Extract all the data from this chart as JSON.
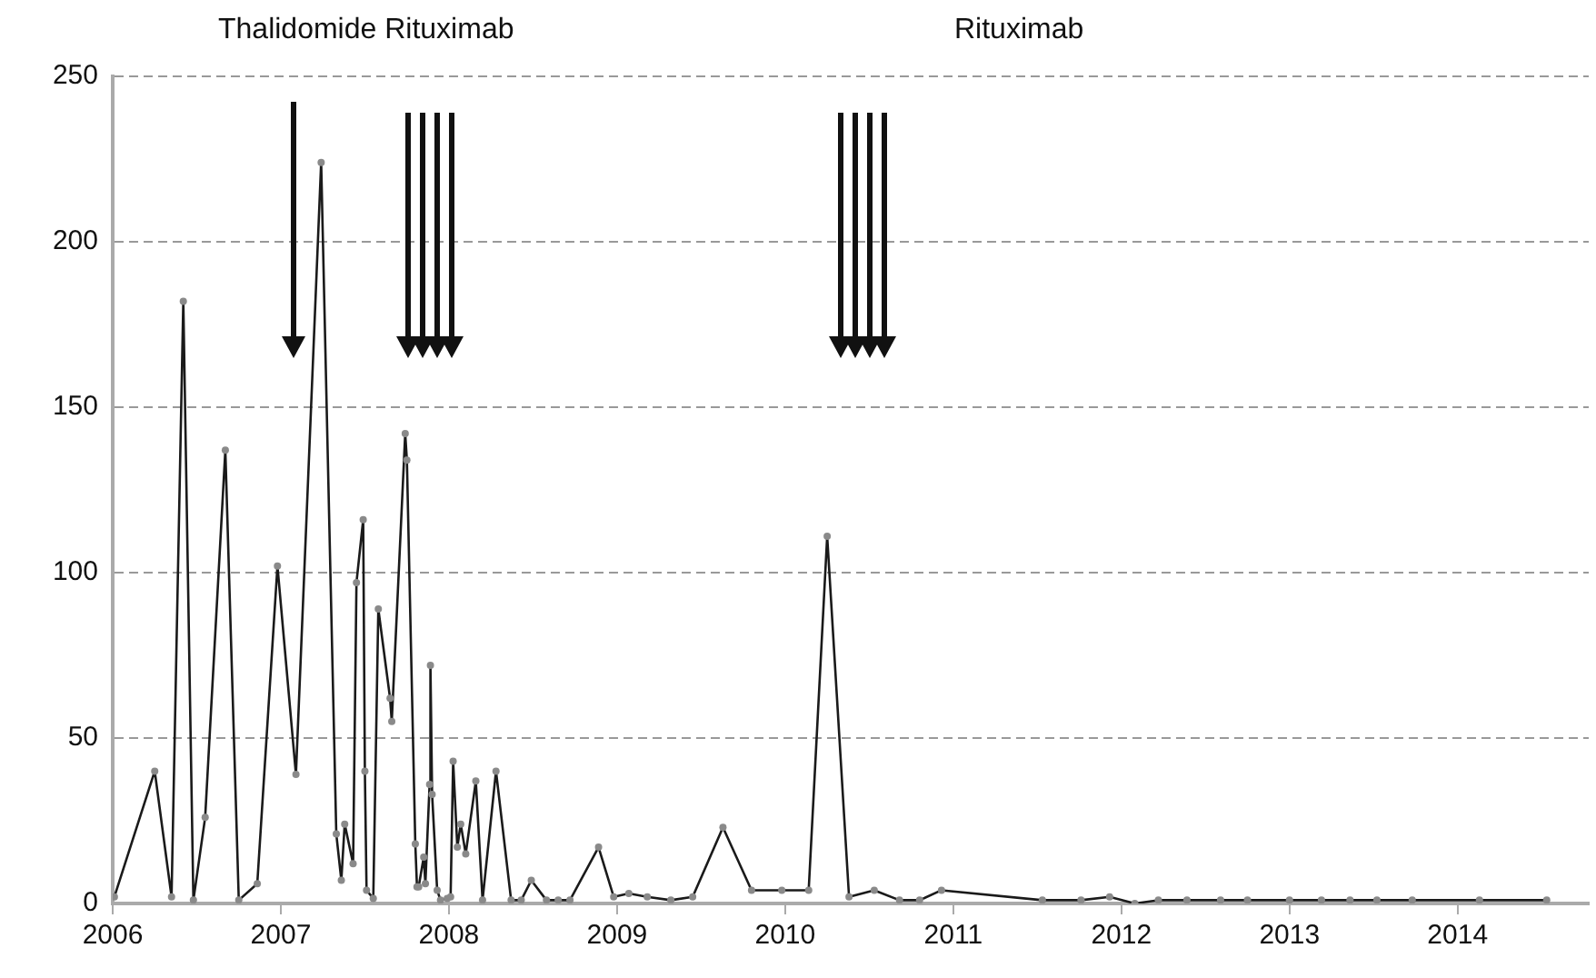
{
  "chart_data": {
    "type": "line",
    "annotations": [
      "Thalidomide Rituximab",
      "Rituximab"
    ],
    "x": [
      2006.01,
      2006.25,
      2006.35,
      2006.42,
      2006.48,
      2006.55,
      2006.67,
      2006.75,
      2006.86,
      2006.98,
      2007.09,
      2007.24,
      2007.33,
      2007.36,
      2007.38,
      2007.43,
      2007.45,
      2007.49,
      2007.5,
      2007.51,
      2007.55,
      2007.58,
      2007.65,
      2007.66,
      2007.74,
      2007.75,
      2007.8,
      2007.81,
      2007.82,
      2007.85,
      2007.86,
      2007.885,
      2007.89,
      2007.9,
      2007.93,
      2007.95,
      2007.99,
      2008.01,
      2008.025,
      2008.05,
      2008.07,
      2008.1,
      2008.16,
      2008.2,
      2008.28,
      2008.37,
      2008.43,
      2008.49,
      2008.58,
      2008.65,
      2008.72,
      2008.89,
      2008.98,
      2009.07,
      2009.18,
      2009.32,
      2009.45,
      2009.63,
      2009.8,
      2009.98,
      2010.14,
      2010.25,
      2010.38,
      2010.53,
      2010.68,
      2010.8,
      2010.93,
      2011.53,
      2011.76,
      2011.93,
      2012.08,
      2012.22,
      2012.39,
      2012.59,
      2012.75,
      2013.0,
      2013.19,
      2013.36,
      2013.52,
      2013.73,
      2014.13,
      2014.53
    ],
    "series": [
      {
        "color": "#1a1a1a",
        "values": [
          2,
          40,
          2,
          182,
          1,
          26,
          137,
          1,
          6,
          102,
          39,
          224,
          21,
          7,
          24,
          12,
          97,
          116,
          40,
          4,
          1.5,
          89,
          62,
          55,
          142,
          134,
          18,
          5,
          5,
          14,
          6,
          36,
          72,
          33,
          4,
          1,
          1.5,
          2,
          43,
          17,
          24,
          15,
          37,
          1,
          40,
          1,
          1,
          7,
          1,
          1,
          1,
          17,
          2,
          3,
          2,
          1,
          2,
          23,
          4,
          4,
          4,
          111,
          2,
          4,
          1,
          1,
          4,
          1,
          1,
          2,
          0,
          1,
          1,
          1,
          1,
          1,
          1,
          1,
          1,
          1,
          1,
          1
        ]
      }
    ],
    "xlim": [
      2006,
      2014.78
    ],
    "xticks": [
      2006,
      2007,
      2008,
      2009,
      2010,
      2011,
      2012,
      2013,
      2014
    ],
    "ylim": [
      0,
      250
    ],
    "yticks": [
      0,
      50,
      100,
      150,
      200,
      250
    ],
    "grid": "y",
    "legend": false,
    "marker": "circle",
    "line_style": "solid"
  }
}
